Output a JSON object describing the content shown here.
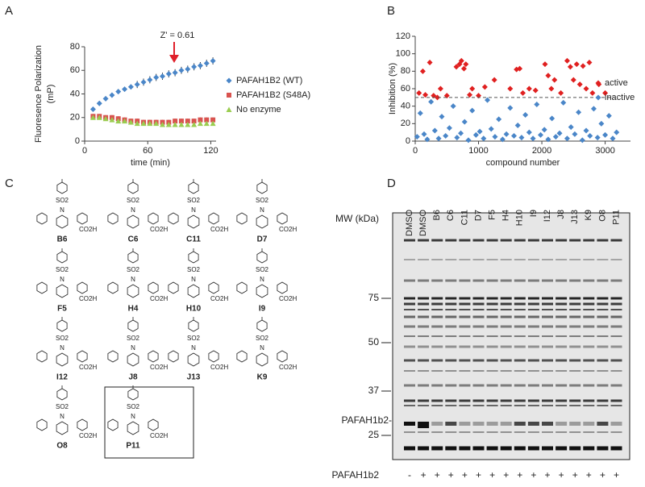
{
  "panel_labels": [
    "A",
    "B",
    "C",
    "D"
  ],
  "chart_data": [
    {
      "type": "line",
      "annotation": "Z' = 0.61",
      "xlabel": "time (min)",
      "ylabel": [
        "Fluoresence Polarization",
        "(mP)"
      ],
      "xlim": [
        0,
        125
      ],
      "xticks": [
        0,
        60,
        120
      ],
      "ylim": [
        0,
        80
      ],
      "yticks": [
        0,
        20,
        40,
        60,
        80
      ],
      "x": [
        8,
        14,
        20,
        26,
        32,
        38,
        44,
        50,
        56,
        62,
        68,
        74,
        80,
        86,
        92,
        98,
        104,
        110,
        116,
        122
      ],
      "series": [
        {
          "name": "PAFAH1B2 (WT)",
          "color": "#4a86c8",
          "marker": "diamond",
          "values": [
            27,
            32,
            36,
            39,
            42,
            44,
            46,
            48,
            50,
            52,
            54,
            55,
            57,
            58,
            60,
            61,
            63,
            64,
            66,
            68
          ],
          "errors": [
            2,
            2,
            2,
            2,
            2,
            2,
            2,
            3,
            3,
            3,
            3,
            3,
            3,
            3,
            3,
            3,
            3,
            3,
            3,
            3
          ]
        },
        {
          "name": "PAFAH1B2 (S48A)",
          "color": "#d9534f",
          "marker": "square",
          "values": [
            21,
            21,
            20,
            20,
            19,
            18,
            17,
            17,
            16,
            16,
            16,
            16,
            16,
            17,
            17,
            17,
            17,
            18,
            18,
            18
          ],
          "errors": [
            2,
            2,
            2,
            2,
            2,
            2,
            2,
            2,
            2,
            2,
            2,
            2,
            2,
            2,
            2,
            2,
            2,
            2,
            2,
            2
          ]
        },
        {
          "name": "No enzyme",
          "color": "#9acd50",
          "marker": "triangle",
          "values": [
            20,
            20,
            19,
            18,
            17,
            17,
            16,
            15,
            15,
            15,
            15,
            14,
            14,
            14,
            14,
            14,
            14,
            15,
            15,
            15
          ],
          "errors": [
            1,
            1,
            1,
            1,
            1,
            1,
            1,
            1,
            1,
            1,
            1,
            1,
            1,
            1,
            1,
            1,
            1,
            1,
            1,
            1
          ]
        }
      ]
    },
    {
      "type": "scatter",
      "xlabel": "compound number",
      "ylabel": "Inhibition (%)",
      "xlim": [
        0,
        3400
      ],
      "xticks": [
        0,
        1000,
        2000,
        3000
      ],
      "ylim": [
        0,
        120
      ],
      "yticks": [
        0,
        20,
        40,
        60,
        80,
        100,
        120
      ],
      "threshold": 50,
      "series": [
        {
          "name": "active",
          "color": "#e02020",
          "x": [
            60,
            120,
            160,
            230,
            290,
            350,
            400,
            500,
            650,
            700,
            730,
            770,
            800,
            860,
            900,
            1000,
            1100,
            1250,
            1500,
            1600,
            1650,
            1700,
            1800,
            1900,
            2050,
            2100,
            2150,
            2200,
            2300,
            2400,
            2450,
            2500,
            2550,
            2600,
            2650,
            2700,
            2750,
            2800,
            2900,
            3000
          ],
          "values": [
            55,
            80,
            53,
            90,
            52,
            50,
            60,
            52,
            85,
            88,
            92,
            83,
            88,
            53,
            60,
            52,
            62,
            70,
            60,
            82,
            83,
            55,
            60,
            58,
            88,
            75,
            60,
            70,
            55,
            92,
            85,
            70,
            88,
            65,
            86,
            60,
            90,
            55,
            65,
            55
          ]
        },
        {
          "name": "inactive",
          "color": "#4a86c8",
          "x": [
            30,
            80,
            140,
            190,
            250,
            310,
            370,
            420,
            480,
            540,
            600,
            660,
            720,
            780,
            840,
            900,
            960,
            1020,
            1080,
            1140,
            1200,
            1260,
            1320,
            1380,
            1440,
            1500,
            1560,
            1620,
            1680,
            1740,
            1800,
            1860,
            1920,
            1980,
            2040,
            2100,
            2160,
            2220,
            2280,
            2340,
            2400,
            2460,
            2520,
            2580,
            2640,
            2700,
            2760,
            2820,
            2880,
            2940,
            3000,
            3060,
            3120,
            3180
          ],
          "values": [
            5,
            32,
            8,
            2,
            45,
            12,
            3,
            28,
            6,
            15,
            40,
            4,
            9,
            22,
            1,
            35,
            7,
            11,
            3,
            47,
            14,
            5,
            25,
            2,
            8,
            38,
            6,
            18,
            4,
            30,
            10,
            3,
            42,
            7,
            13,
            2,
            26,
            5,
            9,
            44,
            3,
            16,
            8,
            33,
            1,
            12,
            6,
            37,
            4,
            20,
            7,
            29,
            3,
            10
          ]
        }
      ]
    }
  ],
  "structures": {
    "so2": "SO2",
    "n": "N",
    "acid": "CO2H",
    "compounds": [
      "B6",
      "C6",
      "C11",
      "D7",
      "F5",
      "H4",
      "H10",
      "I9",
      "I12",
      "J8",
      "J13",
      "K9",
      "O8",
      "P11"
    ]
  },
  "gel": {
    "mw_label": "MW (kDa)",
    "lanes": [
      "DMSO",
      "DMSO",
      "B6",
      "C6",
      "C11",
      "D7",
      "F5",
      "H4",
      "H10",
      "I9",
      "I12",
      "J8",
      "J13",
      "K9",
      "O8",
      "P11"
    ],
    "markers": [
      "75",
      "50",
      "37",
      "25"
    ],
    "band_label": "PAFAH1b2-",
    "row_label": "PAFAH1b2",
    "treatment": [
      "-",
      "+",
      "+",
      "+",
      "+",
      "+",
      "+",
      "+",
      "+",
      "+",
      "+",
      "+",
      "+",
      "+",
      "+",
      "+"
    ]
  }
}
